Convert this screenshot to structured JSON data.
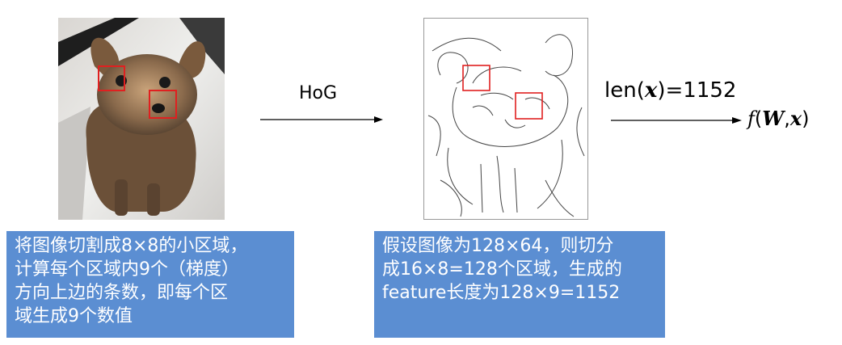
{
  "diagram": {
    "arrow1_label": "HoG",
    "len_expr": {
      "prefix": "len(",
      "var": "x",
      "suffix": ")=1152"
    },
    "func_expr": {
      "name": "f",
      "open": "(",
      "arg1": "W",
      "sep": ",",
      "arg2": "x",
      "close": ")"
    },
    "left_box_text": "将图像切割成8×8的小区域，\n计算每个区域内9个（梯度）\n方向上边的条数，即每个区\n域生成9个数值",
    "right_box_text": "假设图像为128×64，则切分\n成16×8=128个区域，生成的\nfeature长度为128×9=1152",
    "colors": {
      "box_fill": "#5b8ed2",
      "highlight_rect": "#e02020",
      "arrow": "#000000"
    },
    "icons": {
      "left_image": "dog-photo",
      "right_image": "dog-edge-sketch"
    }
  }
}
